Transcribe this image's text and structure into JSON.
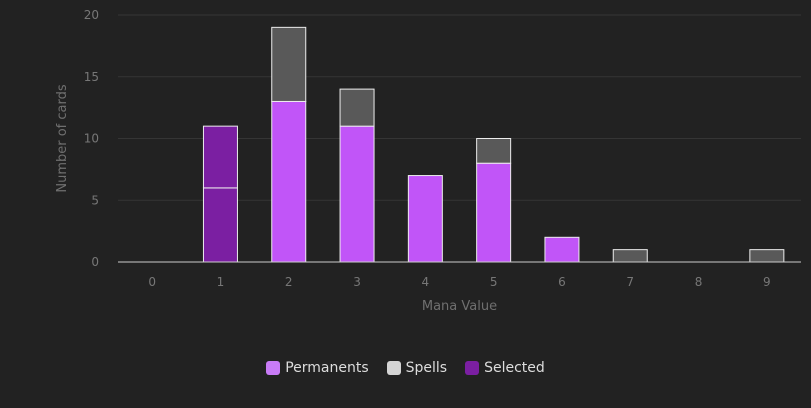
{
  "chart_data": {
    "type": "bar",
    "stacked": true,
    "title": "",
    "xlabel": "Mana Value",
    "ylabel": "Number of cards",
    "categories": [
      "0",
      "1",
      "2",
      "3",
      "4",
      "5",
      "6",
      "7",
      "8",
      "9"
    ],
    "ylim": [
      0,
      20
    ],
    "yticks": [
      "0",
      "5",
      "10",
      "15",
      "20"
    ],
    "grid": true,
    "legend_position": "bottom",
    "series": [
      {
        "name": "Permanents",
        "color": "#c155f8",
        "values": [
          0,
          0,
          13,
          11,
          7,
          8,
          2,
          0,
          0,
          0
        ]
      },
      {
        "name": "Spells",
        "color": "#595959",
        "values": [
          0,
          0,
          6,
          3,
          0,
          2,
          0,
          1,
          0,
          1
        ]
      },
      {
        "name": "Selected",
        "color": "#7b1fa2",
        "values": [
          0,
          11,
          0,
          0,
          0,
          0,
          0,
          0,
          0,
          0
        ]
      }
    ],
    "selected_breakdown": [
      {
        "category": "1",
        "values": [
          6,
          5
        ]
      }
    ],
    "legend": [
      {
        "label": "Permanents",
        "color": "#c87bf6"
      },
      {
        "label": "Spells",
        "color": "#d4d4d4"
      },
      {
        "label": "Selected",
        "color": "#7b1fa2"
      }
    ]
  }
}
